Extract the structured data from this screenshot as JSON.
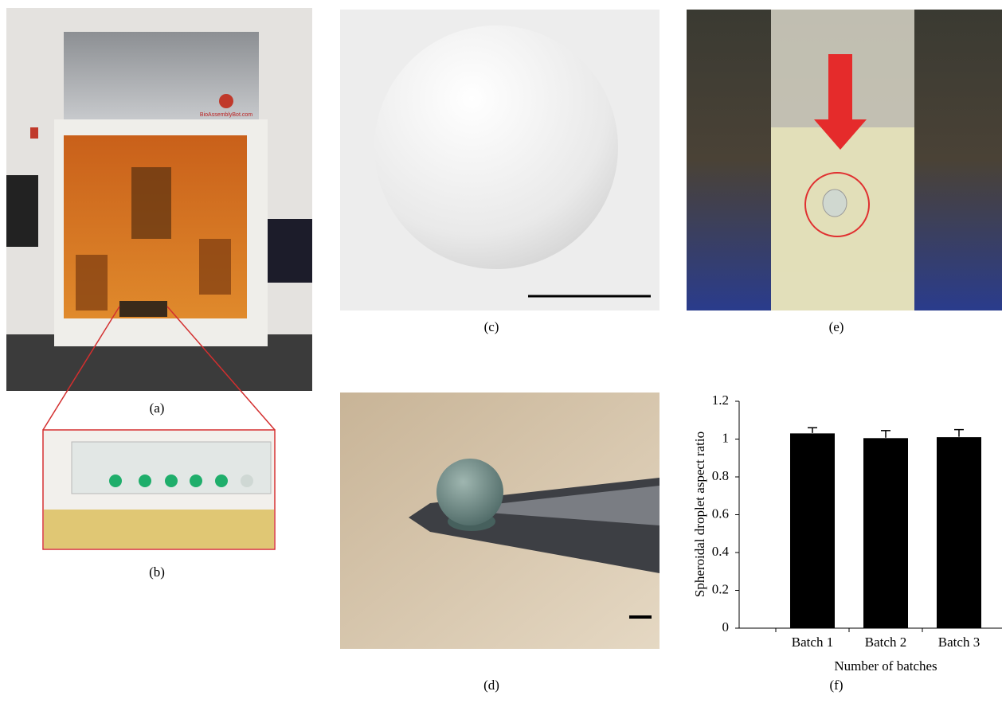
{
  "panels": {
    "a": "(a)",
    "b": "(b)",
    "c": "(c)",
    "d": "(d)",
    "e": "(e)",
    "f": "(f)"
  },
  "photo_a": {
    "brand": "BioAssemblyBot.com"
  },
  "chart_data": {
    "type": "bar",
    "categories": [
      "Batch 1",
      "Batch 2",
      "Batch 3"
    ],
    "values": [
      1.03,
      1.005,
      1.01
    ],
    "errors": [
      0.03,
      0.04,
      0.04
    ],
    "color": "#000000",
    "ylabel": "Spheroidal droplet aspect ratio",
    "xlabel": "Number of batches",
    "ylim": [
      0,
      1.2
    ],
    "yticks": [
      0,
      0.2,
      0.4,
      0.6,
      0.8,
      1,
      1.2
    ]
  }
}
